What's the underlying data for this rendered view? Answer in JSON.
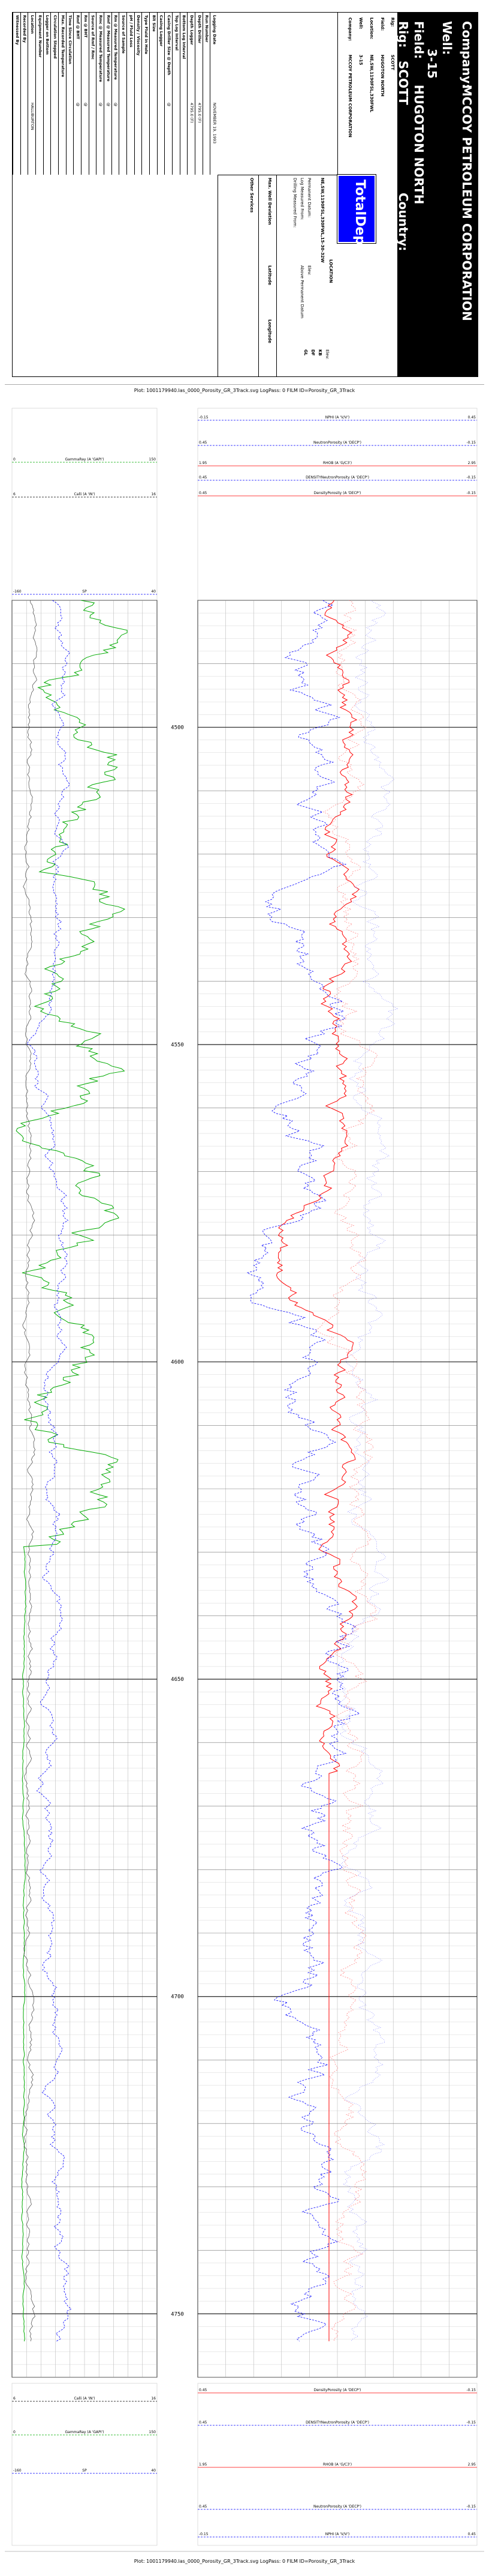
{
  "header": {
    "company_label": "Company:",
    "company": "MCCOY PETROLEUM CORPORATION",
    "well_label": "Well:",
    "well": "3-15",
    "field_label": "Field:",
    "field": "HUGOTON NORTH",
    "rig_label": "Rig:",
    "rig": "SCOTT",
    "country_label": "Country:",
    "logo_text": "TotalDepth"
  },
  "info_rows": [
    {
      "label": "Rig:",
      "value": "SCOTT"
    },
    {
      "label": "Field:",
      "value": "HUGOTON NORTH"
    },
    {
      "label": "Location:",
      "value": "NE,SW,1190FSL,330FWL"
    },
    {
      "label": "Well:",
      "value": "3-15"
    },
    {
      "label": "Company:",
      "value": "MCCOY PETROLEUM CORPORATION"
    }
  ],
  "location_block": {
    "title": "LOCATION",
    "value": "NE,SW,1190FSL,330FWL,15-30-32W",
    "permanent_datum": "Permanent Datum:",
    "log_measured": "Log Measured From:",
    "drilling_measured": "Drilling Measured From:",
    "elev_label": "Elev:",
    "kb": "KB",
    "df": "DF",
    "gl": "GL",
    "elev_value": "Elev:",
    "above_perm": "Above Permanent Datum",
    "max_rec_temp": "Max. Well Deviation",
    "latitude": "Latitude",
    "longitude": "Longitude",
    "other_services": "Other Services"
  },
  "params": [
    {
      "label": "Logging Date",
      "value": "NOVEMBER 19, 1993"
    },
    {
      "label": "Run Number",
      "value": ""
    },
    {
      "label": "Depth Driller",
      "value": "4795.0 (F)"
    },
    {
      "label": "Depth Logger",
      "value": "4795.0 (F)"
    },
    {
      "label": "Bottom Log Interval",
      "value": ""
    },
    {
      "label": "Top Log Interval",
      "value": ""
    },
    {
      "label": "Casing Driller Size @ Depth",
      "value": "@"
    },
    {
      "label": "Casing Logger",
      "value": ""
    },
    {
      "label": "Bit Size",
      "value": ""
    },
    {
      "label": "Type Fluid in Hole",
      "value": ""
    },
    {
      "label": "Density / Viscosity",
      "value": ""
    },
    {
      "label": "pH / Fluid Loss",
      "value": ""
    },
    {
      "label": "Source of Sample",
      "value": ""
    },
    {
      "label": "Rm @ Measured Temperature",
      "value": "@"
    },
    {
      "label": "Rmf @ Measured Temperature",
      "value": "@"
    },
    {
      "label": "Rmc @ Measured Temperature",
      "value": "@"
    },
    {
      "label": "Source of Rmf / Rmc",
      "value": ""
    },
    {
      "label": "Rm @ BHT",
      "value": "@"
    },
    {
      "label": "Rmf @ BHT",
      "value": "@"
    },
    {
      "label": "Time Since Circulation",
      "value": ""
    },
    {
      "label": "Max. Recorded Temperature",
      "value": ""
    },
    {
      "label": "Circulation Stopped",
      "value": ""
    },
    {
      "label": "Logger on Bottom",
      "value": ""
    },
    {
      "label": "Equipment Number",
      "value": ""
    },
    {
      "label": "Location",
      "value": "HALLIBURTON"
    },
    {
      "label": "Recorded By",
      "value": ""
    },
    {
      "label": "Witnessed By",
      "value": ""
    }
  ],
  "plot_title": "Plot: 1001179940.las_0000_Porosity_GR_3Track.svg LogPass: 0 FILM ID=Porosity_GR_3Track",
  "left_track_headers_top": [
    {
      "name": "GammaRay (A 'GAPI')",
      "min": "0",
      "max": "150",
      "color": "#00aa00"
    },
    {
      "name": "Calli (A 'IN')",
      "min": "6",
      "max": "16",
      "color": "#000000"
    },
    {
      "name": "SP",
      "min": "-160",
      "max": "40",
      "color": "#0000ff"
    }
  ],
  "right_track_headers_top": [
    {
      "name": "NPHI (A 'V/V')",
      "min": "-0.15",
      "max": "0.45",
      "color": "#0000ff"
    },
    {
      "name": "NeutronPorosity (A 'DECP')",
      "min": "0.45",
      "max": "-0.15",
      "color": "#0000ff"
    },
    {
      "name": "RHOB (A 'G/C3')",
      "min": "1.95",
      "max": "2.95",
      "color": "#ff0000"
    },
    {
      "name": "DENSITYNeutronPorosity (A 'DECP')",
      "min": "0.45",
      "max": "-0.15",
      "color": "#0000ff"
    },
    {
      "name": "DensityPorosity (A 'DECP')",
      "min": "0.45",
      "max": "-0.15",
      "color": "#ff0000"
    }
  ],
  "depth_labels": [
    "4500",
    "4550",
    "4600",
    "4650",
    "4700",
    "4750"
  ],
  "colors": {
    "header_bg": "#000000",
    "logo_bg": "#0000ff",
    "gr": "#00aa00",
    "sp": "#0000ff",
    "cal": "#444444",
    "rhob": "#ff0000",
    "nphi": "#0000ff"
  }
}
